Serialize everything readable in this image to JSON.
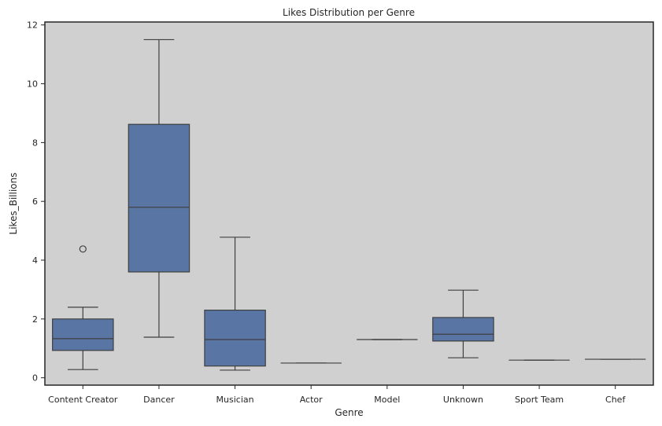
{
  "chart_data": {
    "type": "box",
    "title": "Likes Distribution per Genre",
    "xlabel": "Genre",
    "ylabel": "Likes_Billions",
    "ylim": [
      -0.25,
      12.1
    ],
    "yticks": [
      0,
      2,
      4,
      6,
      8,
      10,
      12
    ],
    "grid": false,
    "colors": {
      "plot_background": "#d0d0d0",
      "box_fill": "#5875a4",
      "line": "#3f3f3f"
    },
    "categories": [
      "Content Creator",
      "Dancer",
      "Musician",
      "Actor",
      "Model",
      "Unknown",
      "Sport Team",
      "Chef"
    ],
    "boxes": [
      {
        "category": "Content Creator",
        "whisker_low": 0.28,
        "q1": 0.93,
        "median": 1.33,
        "q3": 2.0,
        "whisker_high": 2.4,
        "outliers": [
          4.38
        ]
      },
      {
        "category": "Dancer",
        "whisker_low": 1.38,
        "q1": 3.6,
        "median": 5.8,
        "q3": 8.62,
        "whisker_high": 11.5,
        "outliers": []
      },
      {
        "category": "Musician",
        "whisker_low": 0.26,
        "q1": 0.4,
        "median": 1.3,
        "q3": 2.3,
        "whisker_high": 4.78,
        "outliers": []
      },
      {
        "category": "Actor",
        "whisker_low": 0.5,
        "q1": 0.5,
        "median": 0.5,
        "q3": 0.5,
        "whisker_high": 0.5,
        "outliers": []
      },
      {
        "category": "Model",
        "whisker_low": 1.3,
        "q1": 1.3,
        "median": 1.3,
        "q3": 1.3,
        "whisker_high": 1.3,
        "outliers": []
      },
      {
        "category": "Unknown",
        "whisker_low": 0.68,
        "q1": 1.25,
        "median": 1.48,
        "q3": 2.05,
        "whisker_high": 2.98,
        "outliers": []
      },
      {
        "category": "Sport Team",
        "whisker_low": 0.6,
        "q1": 0.6,
        "median": 0.6,
        "q3": 0.6,
        "whisker_high": 0.6,
        "outliers": []
      },
      {
        "category": "Chef",
        "whisker_low": 0.63,
        "q1": 0.63,
        "median": 0.63,
        "q3": 0.63,
        "whisker_high": 0.63,
        "outliers": []
      }
    ]
  }
}
